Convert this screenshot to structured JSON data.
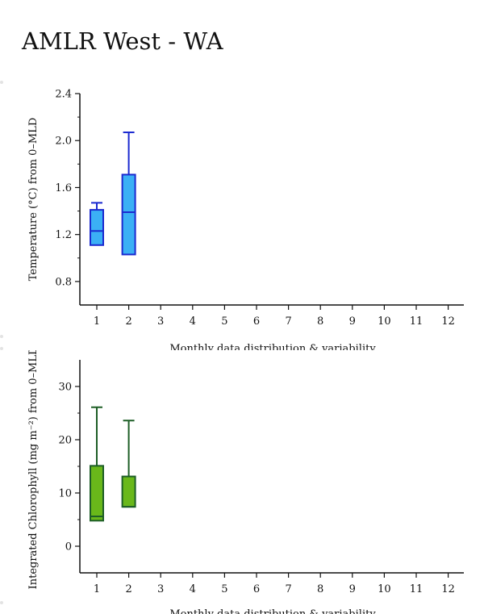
{
  "page": {
    "title": "AMLR West - WA"
  },
  "chart_data": [
    {
      "type": "box",
      "id": "temperature",
      "ylabel": "Temperature (°C) from 0–MLD",
      "xlabel": "Monthly data distribution & variability",
      "categories": [
        "1",
        "2",
        "3",
        "4",
        "5",
        "6",
        "7",
        "8",
        "9",
        "10",
        "11",
        "12"
      ],
      "yticks": [
        0.8,
        1.2,
        1.6,
        2.0,
        2.4
      ],
      "ytick_labels": [
        "0.8",
        "1.2",
        "1.6",
        "2.0",
        "2.4"
      ],
      "ylim": [
        0.6,
        2.4
      ],
      "fill_color": "#3bb0f5",
      "stroke_color": "#1b2ad0",
      "boxes": [
        {
          "x": "1",
          "whisker_low": 1.11,
          "q1": 1.11,
          "median": 1.23,
          "q3": 1.41,
          "whisker_high": 1.47
        },
        {
          "x": "2",
          "whisker_low": 1.03,
          "q1": 1.03,
          "median": 1.39,
          "q3": 1.71,
          "whisker_high": 2.07
        }
      ]
    },
    {
      "type": "box",
      "id": "chlorophyll",
      "ylabel": "Integrated Chlorophyll (mg m⁻²) from 0–MLD",
      "xlabel": "Monthly data distribution & variability",
      "categories": [
        "1",
        "2",
        "3",
        "4",
        "5",
        "6",
        "7",
        "8",
        "9",
        "10",
        "11",
        "12"
      ],
      "yticks": [
        0,
        10,
        20,
        30
      ],
      "ytick_labels": [
        "0",
        "10",
        "20",
        "30"
      ],
      "ylim": [
        -5,
        35
      ],
      "fill_color": "#69b81a",
      "stroke_color": "#1d5e26",
      "boxes": [
        {
          "x": "1",
          "whisker_low": 4.8,
          "q1": 4.8,
          "median": 5.6,
          "q3": 15.1,
          "whisker_high": 26.1
        },
        {
          "x": "2",
          "whisker_low": 7.4,
          "q1": 7.4,
          "median": 7.4,
          "q3": 13.1,
          "whisker_high": 23.6
        }
      ]
    }
  ]
}
